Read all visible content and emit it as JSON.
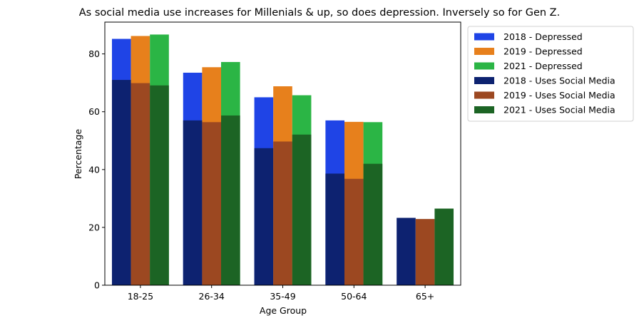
{
  "chart_data": {
    "type": "bar",
    "title": "As social media use increases for Millenials & up, so does depression. Inversely so for Gen Z.",
    "xlabel": "Age Group",
    "ylabel": "Percentage",
    "ylim": [
      0,
      91
    ],
    "yticks": [
      0,
      20,
      40,
      60,
      80
    ],
    "categories": [
      "18-25",
      "26-34",
      "35-49",
      "50-64",
      "65+"
    ],
    "legend_position": "outside right, top",
    "series": [
      {
        "name": "2018 - Depressed",
        "color": "#1f44e6",
        "group": "depressed",
        "offset_index": 0,
        "values": [
          85.2,
          73.5,
          65.0,
          57.0,
          null
        ]
      },
      {
        "name": "2019 - Depressed",
        "color": "#e7801c",
        "group": "depressed",
        "offset_index": 1,
        "values": [
          86.2,
          75.4,
          68.8,
          56.5,
          null
        ]
      },
      {
        "name": "2021 - Depressed",
        "color": "#2bb545",
        "group": "depressed",
        "offset_index": 2,
        "values": [
          86.7,
          77.2,
          65.7,
          56.4,
          null
        ]
      },
      {
        "name": "2018 - Uses Social Media",
        "color": "#0d2270",
        "group": "social",
        "offset_index": 0,
        "values": [
          71.0,
          57.0,
          47.4,
          38.6,
          23.3
        ]
      },
      {
        "name": "2019 - Uses Social Media",
        "color": "#9c4821",
        "group": "social",
        "offset_index": 1,
        "values": [
          69.9,
          56.4,
          49.7,
          36.8,
          22.9
        ]
      },
      {
        "name": "2021 - Uses Social Media",
        "color": "#1c6424",
        "group": "social",
        "offset_index": 2,
        "values": [
          69.1,
          58.7,
          52.1,
          42.0,
          26.5
        ]
      }
    ]
  }
}
